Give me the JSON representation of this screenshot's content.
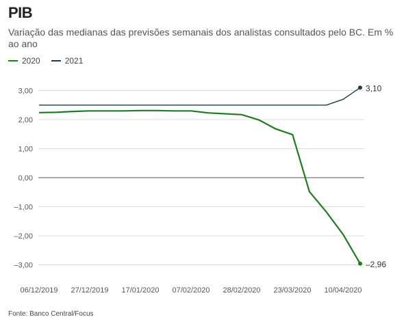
{
  "header": {
    "title": "PIB",
    "subtitle": "Variação das medianas das previsões semanais dos analistas consultados pelo BC. Em % ao ano"
  },
  "legend": [
    {
      "label": "2020",
      "color": "#1e7b1e"
    },
    {
      "label": "2021",
      "color": "#1f3a4a"
    }
  ],
  "footer": {
    "source": "Fonte: Banco Central/Focus"
  },
  "chart_data": {
    "type": "line",
    "x": [
      "06/12/2019",
      "13/12/2019",
      "20/12/2019",
      "27/12/2019",
      "03/01/2020",
      "10/01/2020",
      "17/01/2020",
      "24/01/2020",
      "31/01/2020",
      "07/02/2020",
      "14/02/2020",
      "21/02/2020",
      "28/02/2020",
      "06/03/2020",
      "13/03/2020",
      "20/03/2020",
      "27/03/2020",
      "03/04/2020",
      "10/04/2020",
      "17/04/2020"
    ],
    "x_tick_labels": [
      "06/12/2019",
      "27/12/2019",
      "17/01/2020",
      "07/02/2020",
      "28/02/2020",
      "23/03/2020",
      "10/04/2020"
    ],
    "series": [
      {
        "name": "2020",
        "color": "#1e7b1e",
        "values": [
          2.24,
          2.25,
          2.28,
          2.3,
          2.3,
          2.3,
          2.31,
          2.31,
          2.3,
          2.3,
          2.23,
          2.2,
          2.17,
          1.99,
          1.68,
          1.48,
          -0.48,
          -1.18,
          -1.96,
          -2.96
        ],
        "end_label": "–2,96"
      },
      {
        "name": "2021",
        "color": "#1f3a4a",
        "values": [
          2.5,
          2.5,
          2.5,
          2.5,
          2.5,
          2.5,
          2.5,
          2.5,
          2.5,
          2.5,
          2.5,
          2.5,
          2.5,
          2.5,
          2.5,
          2.5,
          2.5,
          2.5,
          2.7,
          3.1
        ],
        "end_label": "3,10"
      }
    ],
    "yticks": [
      3,
      2,
      1,
      0,
      -1,
      -2,
      -3
    ],
    "ytick_labels": [
      "3,00",
      "2,00",
      "1,00",
      "0,00",
      "–1,00",
      "–2,00",
      "–3,00"
    ],
    "ylim": [
      -3.3,
      3.3
    ],
    "xlabel": "",
    "ylabel": "",
    "grid": true,
    "legend_position": "top-left"
  }
}
